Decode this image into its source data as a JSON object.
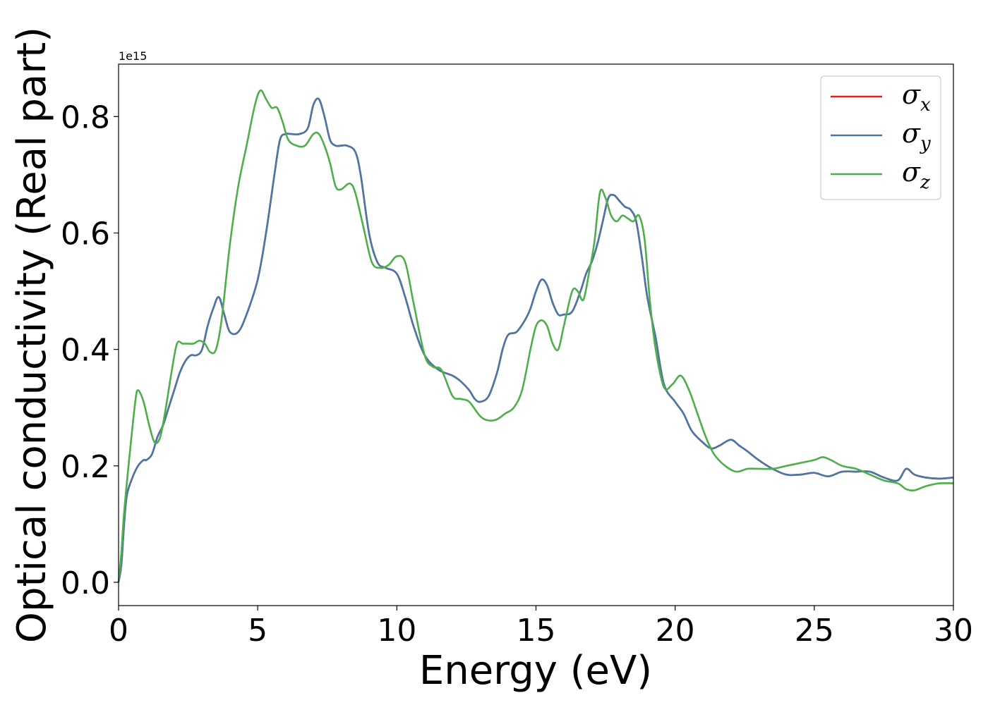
{
  "chart_data": {
    "type": "line",
    "xlabel": "Energy (eV)",
    "ylabel": "Optical conductivity (Real part)",
    "y_offset_label": "1e15",
    "xlim": [
      0,
      30
    ],
    "ylim": [
      -0.04,
      0.89
    ],
    "x_ticks": [
      0,
      5,
      10,
      15,
      20,
      25,
      30
    ],
    "x_tick_labels": [
      "0",
      "5",
      "10",
      "15",
      "20",
      "25",
      "30"
    ],
    "y_ticks": [
      0.0,
      0.2,
      0.4,
      0.6,
      0.8
    ],
    "y_tick_labels": [
      "0.0",
      "0.2",
      "0.4",
      "0.6",
      "0.8"
    ],
    "grid": false,
    "legend_position": "top-right",
    "series": [
      {
        "name": "σx",
        "legend_base": "σ",
        "legend_sub": "x",
        "color": "#e41a1c",
        "x": [
          0,
          0.1,
          0.2,
          0.3,
          0.5,
          0.7,
          0.9,
          1.0,
          1.2,
          1.4,
          1.6,
          1.8,
          2.0,
          2.2,
          2.4,
          2.6,
          2.8,
          3.0,
          3.2,
          3.4,
          3.6,
          3.8,
          4.0,
          4.3,
          4.6,
          5.0,
          5.3,
          5.6,
          5.8,
          6.0,
          6.2,
          6.5,
          6.8,
          7.0,
          7.2,
          7.4,
          7.6,
          7.8,
          8.0,
          8.2,
          8.5,
          8.7,
          9.0,
          9.3,
          9.6,
          10.0,
          10.3,
          10.6,
          11.0,
          11.5,
          12.0,
          12.3,
          12.6,
          12.8,
          13.0,
          13.3,
          13.6,
          13.8,
          14.0,
          14.3,
          14.6,
          14.8,
          15.0,
          15.2,
          15.4,
          15.6,
          15.8,
          16.0,
          16.3,
          16.6,
          16.8,
          17.0,
          17.2,
          17.4,
          17.6,
          17.8,
          18.0,
          18.2,
          18.4,
          18.6,
          18.8,
          19.0,
          19.3,
          19.6,
          20.0,
          20.3,
          20.6,
          21.0,
          21.3,
          21.6,
          22.0,
          22.3,
          22.6,
          23.0,
          23.5,
          24.0,
          24.5,
          25.0,
          25.5,
          26.0,
          26.5,
          27.0,
          27.5,
          28.0,
          28.3,
          28.6,
          29.0,
          29.5,
          30.0
        ],
        "y": [
          0.0,
          0.03,
          0.1,
          0.15,
          0.18,
          0.2,
          0.21,
          0.21,
          0.22,
          0.25,
          0.27,
          0.3,
          0.33,
          0.36,
          0.38,
          0.39,
          0.39,
          0.4,
          0.44,
          0.47,
          0.49,
          0.46,
          0.43,
          0.43,
          0.46,
          0.52,
          0.6,
          0.7,
          0.76,
          0.77,
          0.77,
          0.77,
          0.78,
          0.82,
          0.83,
          0.8,
          0.76,
          0.75,
          0.75,
          0.75,
          0.74,
          0.7,
          0.6,
          0.55,
          0.54,
          0.53,
          0.49,
          0.44,
          0.39,
          0.365,
          0.355,
          0.345,
          0.33,
          0.315,
          0.31,
          0.32,
          0.36,
          0.4,
          0.425,
          0.43,
          0.45,
          0.47,
          0.5,
          0.52,
          0.51,
          0.48,
          0.46,
          0.46,
          0.465,
          0.5,
          0.53,
          0.55,
          0.58,
          0.62,
          0.66,
          0.665,
          0.655,
          0.645,
          0.64,
          0.62,
          0.56,
          0.49,
          0.42,
          0.34,
          0.31,
          0.29,
          0.26,
          0.24,
          0.23,
          0.235,
          0.245,
          0.235,
          0.225,
          0.21,
          0.195,
          0.185,
          0.185,
          0.188,
          0.182,
          0.19,
          0.19,
          0.19,
          0.18,
          0.175,
          0.195,
          0.185,
          0.18,
          0.178,
          0.18
        ]
      },
      {
        "name": "σy",
        "legend_base": "σ",
        "legend_sub": "y",
        "color": "#4878a8",
        "x": [
          0,
          0.1,
          0.2,
          0.3,
          0.5,
          0.7,
          0.9,
          1.0,
          1.2,
          1.4,
          1.6,
          1.8,
          2.0,
          2.2,
          2.4,
          2.6,
          2.8,
          3.0,
          3.2,
          3.4,
          3.6,
          3.8,
          4.0,
          4.3,
          4.6,
          5.0,
          5.3,
          5.6,
          5.8,
          6.0,
          6.2,
          6.5,
          6.8,
          7.0,
          7.2,
          7.4,
          7.6,
          7.8,
          8.0,
          8.2,
          8.5,
          8.7,
          9.0,
          9.3,
          9.6,
          10.0,
          10.3,
          10.6,
          11.0,
          11.5,
          12.0,
          12.3,
          12.6,
          12.8,
          13.0,
          13.3,
          13.6,
          13.8,
          14.0,
          14.3,
          14.6,
          14.8,
          15.0,
          15.2,
          15.4,
          15.6,
          15.8,
          16.0,
          16.3,
          16.6,
          16.8,
          17.0,
          17.2,
          17.4,
          17.6,
          17.8,
          18.0,
          18.2,
          18.4,
          18.6,
          18.8,
          19.0,
          19.3,
          19.6,
          20.0,
          20.3,
          20.6,
          21.0,
          21.3,
          21.6,
          22.0,
          22.3,
          22.6,
          23.0,
          23.5,
          24.0,
          24.5,
          25.0,
          25.5,
          26.0,
          26.5,
          27.0,
          27.5,
          28.0,
          28.3,
          28.6,
          29.0,
          29.5,
          30.0
        ],
        "y": [
          0.0,
          0.03,
          0.1,
          0.15,
          0.18,
          0.2,
          0.21,
          0.21,
          0.22,
          0.25,
          0.27,
          0.3,
          0.33,
          0.36,
          0.38,
          0.39,
          0.39,
          0.4,
          0.44,
          0.47,
          0.49,
          0.46,
          0.43,
          0.43,
          0.46,
          0.52,
          0.6,
          0.7,
          0.76,
          0.77,
          0.77,
          0.77,
          0.78,
          0.82,
          0.83,
          0.8,
          0.76,
          0.75,
          0.75,
          0.75,
          0.74,
          0.7,
          0.6,
          0.55,
          0.54,
          0.53,
          0.49,
          0.44,
          0.39,
          0.365,
          0.355,
          0.345,
          0.33,
          0.315,
          0.31,
          0.32,
          0.36,
          0.4,
          0.425,
          0.43,
          0.45,
          0.47,
          0.5,
          0.52,
          0.51,
          0.48,
          0.46,
          0.46,
          0.465,
          0.5,
          0.53,
          0.55,
          0.58,
          0.62,
          0.66,
          0.665,
          0.655,
          0.645,
          0.64,
          0.62,
          0.56,
          0.49,
          0.42,
          0.34,
          0.31,
          0.29,
          0.26,
          0.24,
          0.23,
          0.235,
          0.245,
          0.235,
          0.225,
          0.21,
          0.195,
          0.185,
          0.185,
          0.188,
          0.182,
          0.19,
          0.19,
          0.19,
          0.18,
          0.175,
          0.195,
          0.185,
          0.18,
          0.178,
          0.18
        ]
      },
      {
        "name": "σz",
        "legend_base": "σ",
        "legend_sub": "z",
        "color": "#4daf4a",
        "x": [
          0,
          0.1,
          0.2,
          0.4,
          0.6,
          0.7,
          0.9,
          1.1,
          1.3,
          1.5,
          1.7,
          1.9,
          2.1,
          2.3,
          2.5,
          2.7,
          2.9,
          3.1,
          3.3,
          3.5,
          3.7,
          4.0,
          4.3,
          4.6,
          4.9,
          5.1,
          5.3,
          5.5,
          5.7,
          5.9,
          6.1,
          6.4,
          6.7,
          7.0,
          7.2,
          7.4,
          7.6,
          7.8,
          8.0,
          8.3,
          8.5,
          8.8,
          9.1,
          9.4,
          9.7,
          10.0,
          10.3,
          10.6,
          11.0,
          11.3,
          11.6,
          12.0,
          12.3,
          12.6,
          13.0,
          13.3,
          13.6,
          13.9,
          14.2,
          14.5,
          14.8,
          15.0,
          15.2,
          15.4,
          15.6,
          15.8,
          16.0,
          16.3,
          16.5,
          16.7,
          16.9,
          17.1,
          17.3,
          17.5,
          17.7,
          17.9,
          18.1,
          18.3,
          18.5,
          18.7,
          18.9,
          19.1,
          19.3,
          19.6,
          19.9,
          20.2,
          20.5,
          20.8,
          21.1,
          21.4,
          21.8,
          22.2,
          22.6,
          23.0,
          23.5,
          24.0,
          24.5,
          25.0,
          25.3,
          25.6,
          26.0,
          26.5,
          27.0,
          27.5,
          28.0,
          28.3,
          28.6,
          29.0,
          29.5,
          30.0
        ],
        "y": [
          0.0,
          0.05,
          0.12,
          0.22,
          0.31,
          0.33,
          0.31,
          0.27,
          0.24,
          0.25,
          0.3,
          0.36,
          0.41,
          0.41,
          0.41,
          0.41,
          0.415,
          0.41,
          0.395,
          0.4,
          0.45,
          0.58,
          0.68,
          0.75,
          0.82,
          0.845,
          0.83,
          0.815,
          0.815,
          0.79,
          0.76,
          0.75,
          0.75,
          0.77,
          0.77,
          0.75,
          0.72,
          0.68,
          0.675,
          0.685,
          0.67,
          0.61,
          0.55,
          0.54,
          0.545,
          0.56,
          0.55,
          0.48,
          0.39,
          0.37,
          0.365,
          0.32,
          0.315,
          0.31,
          0.285,
          0.278,
          0.28,
          0.29,
          0.3,
          0.33,
          0.4,
          0.44,
          0.45,
          0.44,
          0.41,
          0.4,
          0.44,
          0.5,
          0.5,
          0.485,
          0.53,
          0.585,
          0.67,
          0.66,
          0.63,
          0.62,
          0.63,
          0.625,
          0.62,
          0.63,
          0.59,
          0.48,
          0.4,
          0.335,
          0.34,
          0.355,
          0.33,
          0.29,
          0.25,
          0.22,
          0.2,
          0.19,
          0.195,
          0.195,
          0.195,
          0.2,
          0.205,
          0.21,
          0.215,
          0.21,
          0.2,
          0.195,
          0.185,
          0.175,
          0.17,
          0.16,
          0.158,
          0.165,
          0.17,
          0.17
        ]
      }
    ]
  }
}
